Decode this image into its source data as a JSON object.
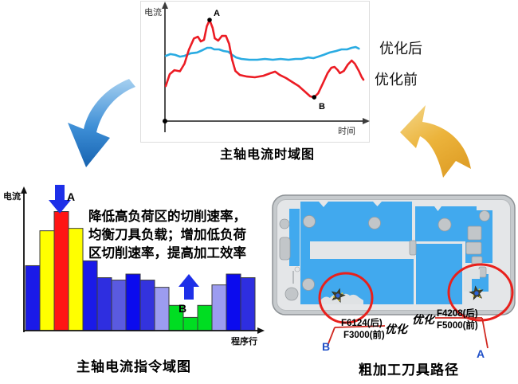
{
  "time_chart": {
    "title": "主轴电流时域图",
    "ylabel": "电流",
    "xlabel": "时间",
    "marker_a": "A",
    "marker_b": "B",
    "legend": [
      {
        "label": "优化后",
        "series_color": "#29abe2"
      },
      {
        "label": "优化前",
        "series_color": "#ec1c24"
      }
    ]
  },
  "command_chart": {
    "title": "主轴电流指令域图",
    "ylabel": "电流",
    "xlabel": "程序行",
    "marker_a": "A",
    "marker_b": "B",
    "annotation_lines": [
      "降低高负荷区的切削速率，",
      "均衡刀具负载；增加低负荷",
      "区切削速率，提高加工效率"
    ]
  },
  "toolpath": {
    "title": "粗加工刀具路径",
    "label_b_after": "F6124(后)",
    "label_b_before": "F3000(前)",
    "label_b_opt": "优化",
    "label_a_opt": "优化",
    "label_a_after": "F4208(后)",
    "label_a_before": "F5000(前)",
    "marker_a": "A",
    "marker_b": "B"
  },
  "colors": {
    "optimized_line": "#29abe2",
    "original_line": "#ec1c24",
    "highlight_circle": "#e8201c",
    "pocket_blue": "#41a9ee",
    "arrow_blue": "#2a79c4",
    "arrow_gold": "#e8b23c"
  },
  "chart_data": [
    {
      "type": "line",
      "title": "主轴电流时域图",
      "xlabel": "时间",
      "ylabel": "电流",
      "axis_note": "axes carry no numeric ticks; point values normalized 0-100",
      "legend_position": "right",
      "grid": false,
      "series": [
        {
          "name": "优化后",
          "color": "#29abe2",
          "points": [
            [
              0.4,
              57.7
            ],
            [
              2.7,
              59.2
            ],
            [
              5.1,
              58.5
            ],
            [
              7.5,
              57
            ],
            [
              9.8,
              57.7
            ],
            [
              12.9,
              59.9
            ],
            [
              16.1,
              60.6
            ],
            [
              18.8,
              62.7
            ],
            [
              21.2,
              64.8
            ],
            [
              23.1,
              64.8
            ],
            [
              24.7,
              63.4
            ],
            [
              27.1,
              63.4
            ],
            [
              29.4,
              62
            ],
            [
              31.8,
              61.3
            ],
            [
              33.7,
              58.5
            ],
            [
              35.7,
              56.3
            ],
            [
              38.4,
              54.9
            ],
            [
              42.4,
              54.2
            ],
            [
              46.3,
              54.2
            ],
            [
              50.2,
              54.9
            ],
            [
              54.1,
              54.2
            ],
            [
              58,
              54.9
            ],
            [
              62,
              54.2
            ],
            [
              65.5,
              54.9
            ],
            [
              68.6,
              54.9
            ],
            [
              71.8,
              56.3
            ],
            [
              74.5,
              55.6
            ],
            [
              76.9,
              57
            ],
            [
              79.6,
              58.5
            ],
            [
              82.7,
              60.6
            ],
            [
              85.9,
              62
            ],
            [
              88.6,
              63.4
            ],
            [
              91.4,
              63.4
            ],
            [
              93.7,
              64.8
            ],
            [
              95.7,
              65.5
            ],
            [
              97.3,
              64.1
            ]
          ]
        },
        {
          "name": "优化前",
          "color": "#ec1c24",
          "points": [
            [
              0.4,
              31
            ],
            [
              2.4,
              41.5
            ],
            [
              4.7,
              45
            ],
            [
              7.5,
              44
            ],
            [
              9.8,
              50.7
            ],
            [
              12,
              63
            ],
            [
              14.5,
              73
            ],
            [
              16.5,
              74.6
            ],
            [
              18,
              70.4
            ],
            [
              19.6,
              71.8
            ],
            [
              21,
              83.8
            ],
            [
              22.4,
              89.4
            ],
            [
              23.9,
              82.4
            ],
            [
              25,
              73.2
            ],
            [
              26.7,
              71.1
            ],
            [
              28.6,
              75.3
            ],
            [
              30.6,
              75.3
            ],
            [
              32.2,
              68.3
            ],
            [
              33.7,
              54.2
            ],
            [
              35.3,
              44.4
            ],
            [
              37.6,
              40.8
            ],
            [
              41.2,
              39.4
            ],
            [
              45.1,
              38.7
            ],
            [
              49.4,
              40.1
            ],
            [
              52.9,
              42.3
            ],
            [
              55.3,
              43.7
            ],
            [
              57.6,
              40.8
            ],
            [
              60.8,
              38
            ],
            [
              63.9,
              34.5
            ],
            [
              67.1,
              31
            ],
            [
              70.2,
              26.1
            ],
            [
              72.9,
              21.8
            ],
            [
              74.9,
              21.1
            ],
            [
              76.9,
              24.6
            ],
            [
              79.2,
              33.1
            ],
            [
              81.6,
              42.3
            ],
            [
              83.5,
              47.2
            ],
            [
              85.1,
              47.9
            ],
            [
              86.7,
              45.1
            ],
            [
              87.8,
              42.3
            ],
            [
              89.8,
              44.4
            ],
            [
              91.8,
              50
            ],
            [
              93.7,
              53.5
            ],
            [
              95.3,
              50.7
            ],
            [
              97.3,
              44.4
            ],
            [
              98.8,
              38.7
            ],
            [
              99.6,
              36.6
            ]
          ]
        }
      ],
      "annotations": [
        {
          "label": "A",
          "x": 22.4,
          "y": 89.4,
          "series": "优化前",
          "meaning": "peak high-load point"
        },
        {
          "label": "B",
          "x": 74.9,
          "y": 21.1,
          "series": "优化前",
          "meaning": "lowest low-load point"
        }
      ]
    },
    {
      "type": "bar",
      "title": "主轴电流指令域图",
      "xlabel": "程序行",
      "ylabel": "电流",
      "axis_note": "no numeric ticks; bar heights normalized 0-100",
      "values": [
        54,
        83,
        99,
        85,
        58,
        44,
        42,
        47,
        42,
        36,
        21,
        11,
        21,
        38,
        47,
        44
      ],
      "colors": [
        "#1a1ae8",
        "#ffff00",
        "#ff1414",
        "#ffff00",
        "#1a1ae8",
        "#2e2ee0",
        "#5a5ae0",
        "#0b0bee",
        "#3333dd",
        "#9c9cf0",
        "#00dd22",
        "#00dd22",
        "#00dd22",
        "#9c9cf0",
        "#0b0bee",
        "#2e2ee0"
      ],
      "annotations": [
        {
          "label": "A",
          "bar_index": 3,
          "arrow": "down",
          "meaning": "reduce feed at high-load bar"
        },
        {
          "label": "B",
          "bar_index": 12,
          "arrow": "up",
          "meaning": "increase feed at low-load bar"
        }
      ]
    }
  ]
}
